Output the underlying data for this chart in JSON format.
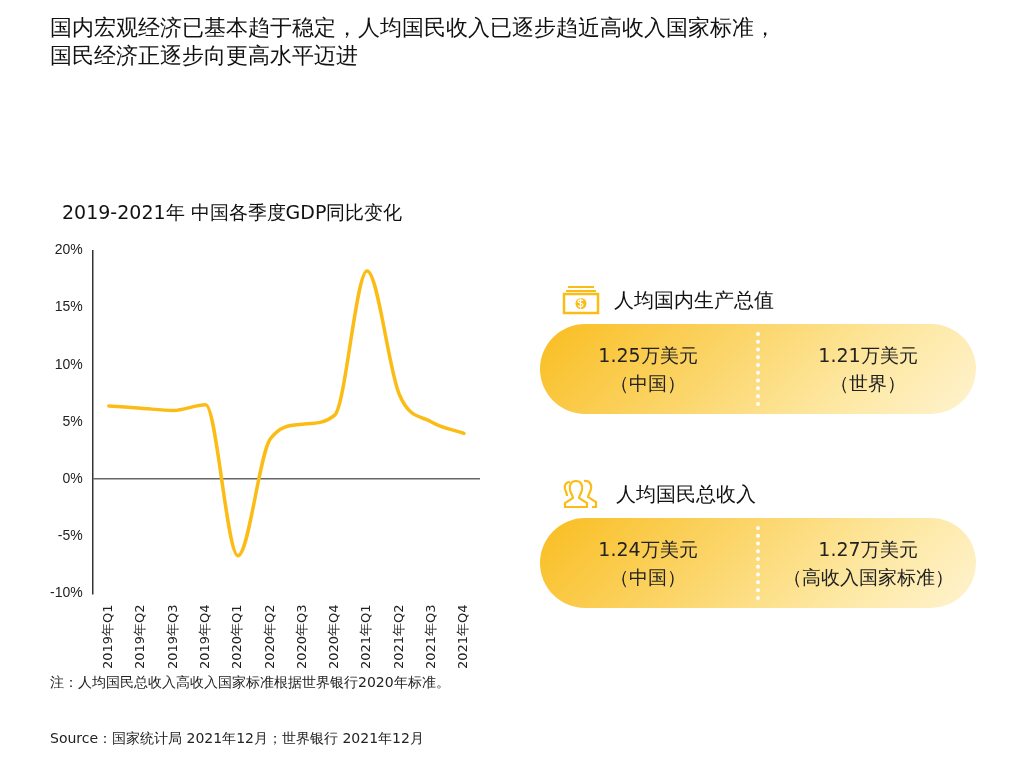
{
  "chart_data": [
    {
      "type": "line",
      "title": "国内宏观经济已基本趋于稳定，人均国民收入已逐步趋近高收入国家标准，国民经济正逐步向更高水平迈进",
      "subtitle": "2019-2021年 中国各季度GDP同比变化",
      "categories": [
        "2019年Q1",
        "2019年Q2",
        "2019年Q3",
        "2019年Q4",
        "2020年Q1",
        "2020年Q2",
        "2020年Q3",
        "2020年Q4",
        "2021年Q1",
        "2021年Q2",
        "2021年Q3",
        "2021年Q4"
      ],
      "series": [
        {
          "color": "#fbbc16",
          "values": [
            6.4,
            6.2,
            6.0,
            6.5,
            -6.7,
            3.5,
            4.8,
            5.6,
            18.2,
            7.4,
            5.0,
            4.0
          ]
        }
      ],
      "ylim": [
        -10,
        20
      ],
      "yticks": [
        {
          "value": -10,
          "label": "-10%"
        },
        {
          "value": -5,
          "label": "-5%"
        },
        {
          "value": 0,
          "label": "0%"
        },
        {
          "value": 5,
          "label": "5%"
        },
        {
          "value": 10,
          "label": "10%"
        },
        {
          "value": 15,
          "label": "15%"
        },
        {
          "value": 20,
          "label": "20%"
        }
      ],
      "legend": false,
      "marker": "none",
      "line_style": "solid",
      "annotations": [
        "注：人均国民总收入高收入国家标准根据世界银行2020年标准。",
        "Source：国家统计局 2021年12月；世界银行 2021年12月"
      ]
    },
    {
      "type": "other",
      "title": "人均国内生产总值",
      "annotations": [
        "1.25万美元",
        "（中国）",
        "1.21万美元",
        "（世界）"
      ]
    },
    {
      "type": "other",
      "title": "人均国民总收入",
      "annotations": [
        "1.24万美元",
        "（中国）",
        "1.27万美元",
        "（高收入国家标准）"
      ]
    }
  ]
}
